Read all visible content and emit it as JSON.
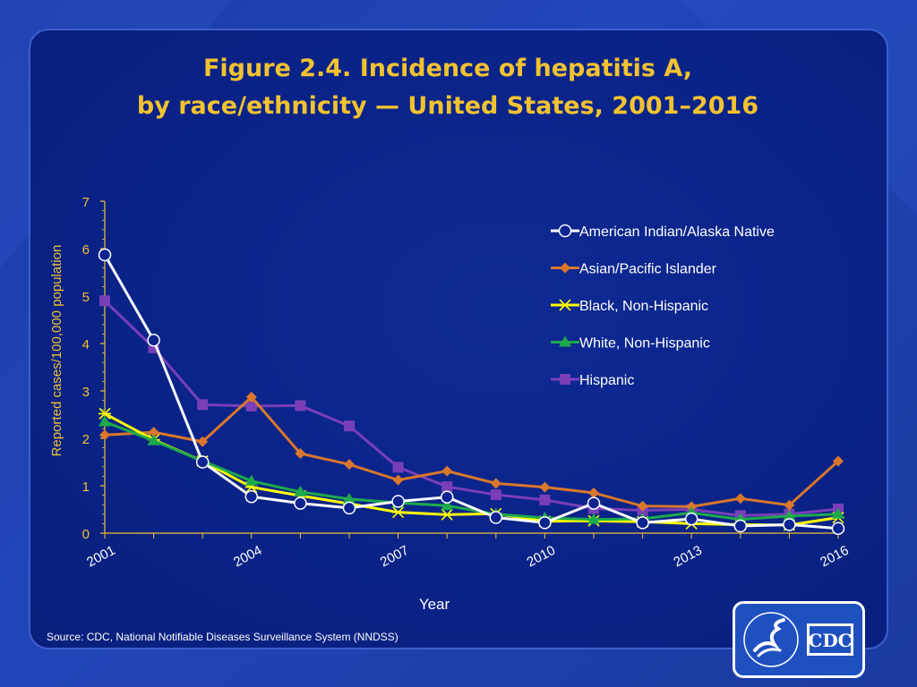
{
  "page": {
    "title_line1": "Figure 2.4. Incidence of hepatitis A,",
    "title_line2": "by race/ethnicity — United States, 2001–2016",
    "source": "Source:  CDC, National Notifiable Diseases Surveillance System (NNDSS)",
    "logo_text": "CDC"
  },
  "colors": {
    "title": "#f2c230",
    "axis": "#f2c230",
    "text": "#ffffff"
  },
  "chart_data": {
    "type": "line",
    "title": "Figure 2.4. Incidence of hepatitis A, by race/ethnicity — United States, 2001–2016",
    "xlabel": "Year",
    "ylabel": "Reported cases/100,000 population",
    "x": [
      2001,
      2002,
      2003,
      2004,
      2005,
      2006,
      2007,
      2008,
      2009,
      2010,
      2011,
      2012,
      2013,
      2014,
      2015,
      2016
    ],
    "x_tick_labels": [
      "2001",
      "2004",
      "2007",
      "2010",
      "2013",
      "2016"
    ],
    "x_tick_years": [
      2001,
      2004,
      2007,
      2010,
      2013,
      2016
    ],
    "ylim": [
      0,
      7
    ],
    "y_ticks": [
      0,
      1,
      2,
      3,
      4,
      5,
      6,
      7
    ],
    "legend_position": "top-right",
    "series": [
      {
        "name": "American Indian/Alaska Native",
        "color": "#ffffff",
        "marker": "circle-open",
        "values": [
          5.87,
          4.07,
          1.5,
          0.77,
          0.63,
          0.53,
          0.67,
          0.76,
          0.33,
          0.22,
          0.63,
          0.22,
          0.3,
          0.15,
          0.18,
          0.1
        ]
      },
      {
        "name": "Asian/Pacific Islander",
        "color": "#d9772b",
        "marker": "diamond",
        "values": [
          2.07,
          2.13,
          1.93,
          2.87,
          1.68,
          1.45,
          1.12,
          1.31,
          1.05,
          0.97,
          0.85,
          0.57,
          0.56,
          0.73,
          0.59,
          1.52
        ]
      },
      {
        "name": "Black, Non-Hispanic",
        "color": "#ffff00",
        "marker": "star",
        "values": [
          2.52,
          1.97,
          1.52,
          0.97,
          0.79,
          0.62,
          0.44,
          0.39,
          0.41,
          0.25,
          0.26,
          0.24,
          0.2,
          0.18,
          0.17,
          0.33
        ]
      },
      {
        "name": "White, Non-Hispanic",
        "color": "#1daa4c",
        "marker": "triangle",
        "values": [
          2.35,
          1.95,
          1.52,
          1.1,
          0.87,
          0.72,
          0.64,
          0.58,
          0.4,
          0.32,
          0.29,
          0.3,
          0.43,
          0.29,
          0.36,
          0.4
        ]
      },
      {
        "name": "Hispanic",
        "color": "#7a3fb8",
        "marker": "square",
        "values": [
          4.9,
          3.91,
          2.71,
          2.68,
          2.69,
          2.26,
          1.39,
          0.98,
          0.81,
          0.7,
          0.52,
          0.48,
          0.5,
          0.37,
          0.4,
          0.51
        ]
      }
    ]
  }
}
